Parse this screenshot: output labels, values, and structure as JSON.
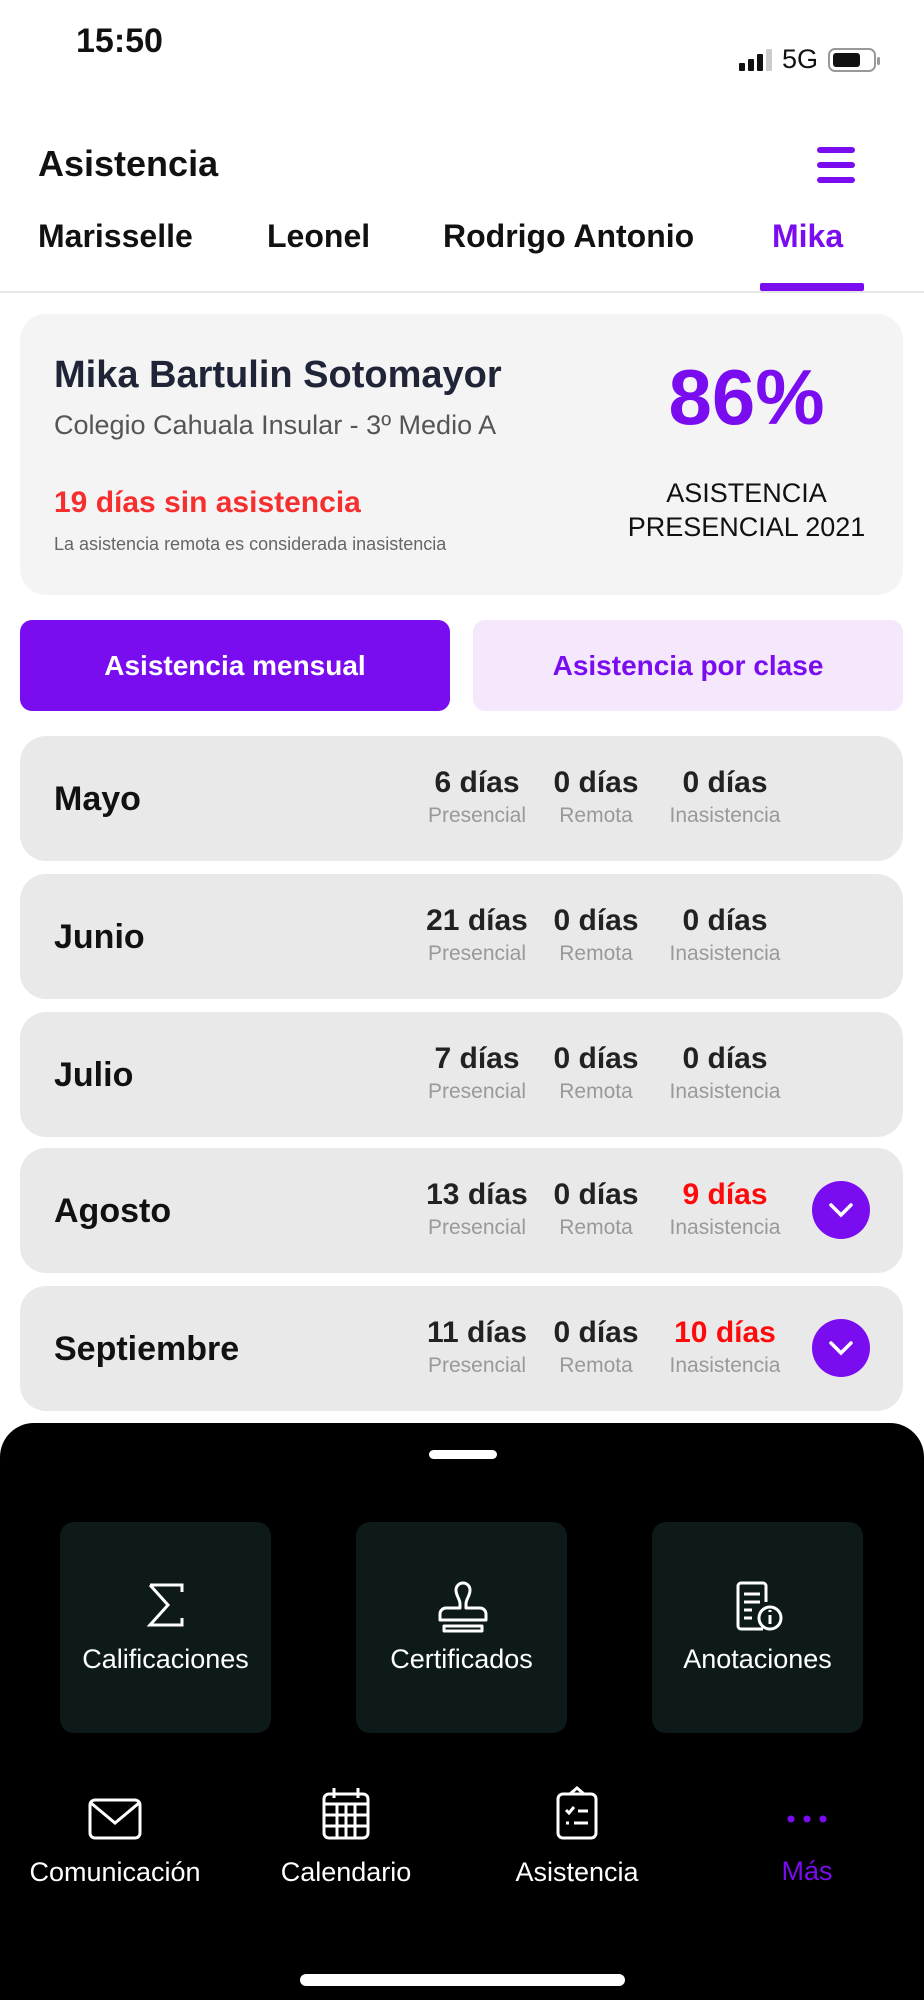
{
  "status_bar": {
    "time": "15:50",
    "network": "5G"
  },
  "header": {
    "title": "Asistencia",
    "menu_icon": "hamburger-menu-icon"
  },
  "tabs": [
    {
      "label": "Marisselle"
    },
    {
      "label": "Leonel"
    },
    {
      "label": "Rodrigo Antonio"
    },
    {
      "label": "Mika",
      "active": true
    }
  ],
  "student": {
    "name": "Mika Bartulin Sotomayor",
    "school": "Colegio Cahuala Insular - 3º Medio A",
    "absent_days": "19 días sin asistencia",
    "note": "La asistencia remota es considerada inasistencia",
    "percentage": "86%",
    "percentage_label_1": "ASISTENCIA",
    "percentage_label_2": "PRESENCIAL 2021"
  },
  "toggle": {
    "monthly": "Asistencia mensual",
    "by_class": "Asistencia por clase"
  },
  "column_labels": {
    "presencial": "Presencial",
    "remota": "Remota",
    "inasistencia": "Inasistencia"
  },
  "months": [
    {
      "name": "Mayo",
      "presencial": "6 días",
      "remota": "0 días",
      "inasistencia": "0 días",
      "highlight": false
    },
    {
      "name": "Junio",
      "presencial": "21 días",
      "remota": "0 días",
      "inasistencia": "0 días",
      "highlight": false
    },
    {
      "name": "Julio",
      "presencial": "7 días",
      "remota": "0 días",
      "inasistencia": "0 días",
      "highlight": false
    },
    {
      "name": "Agosto",
      "presencial": "13 días",
      "remota": "0 días",
      "inasistencia": "9 días",
      "highlight": true
    },
    {
      "name": "Septiembre",
      "presencial": "11 días",
      "remota": "0 días",
      "inasistencia": "10 días",
      "highlight": true
    }
  ],
  "sheet_tiles": [
    {
      "label": "Calificaciones",
      "icon": "sigma-icon"
    },
    {
      "label": "Certificados",
      "icon": "stamp-icon"
    },
    {
      "label": "Anotaciones",
      "icon": "document-info-icon"
    }
  ],
  "bottom_nav": [
    {
      "label": "Comunicación",
      "icon": "envelope-icon"
    },
    {
      "label": "Calendario",
      "icon": "calendar-icon"
    },
    {
      "label": "Asistencia",
      "icon": "clipboard-icon"
    },
    {
      "label": "Más",
      "icon": "more-dots-icon",
      "active": true
    }
  ],
  "colors": {
    "accent": "#7a0cf0",
    "alert": "#ff0a0a",
    "sheet": "#000000",
    "tile": "#0e1a1a"
  }
}
